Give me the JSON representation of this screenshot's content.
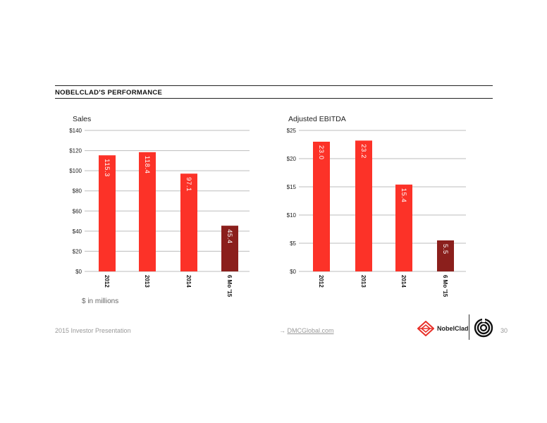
{
  "header": {
    "title": "NOBELCLAD'S PERFORMANCE"
  },
  "note": "$ in millions",
  "footer": {
    "left": "2015 Investor Presentation",
    "arrow": "→",
    "link": "DMCGlobal.com",
    "page": "30",
    "logo_text": "NobelClad"
  },
  "icons": {
    "nobelclad": "nobelclad-logo-icon",
    "dmc": "dmc-swirl-icon"
  },
  "colors": {
    "primary_bar": "#fc3228",
    "highlight_bar": "#8b1f1c",
    "grid": "#bdbdbd"
  },
  "chart_data": [
    {
      "type": "bar",
      "title": "Sales",
      "categories": [
        "2012",
        "2013",
        "2014",
        "6 Mo '15"
      ],
      "values": [
        115.3,
        118.4,
        97.1,
        45.4
      ],
      "value_labels": [
        "115.3",
        "118.4",
        "97.1",
        "45.4"
      ],
      "ylim": [
        0,
        140
      ],
      "yticks": [
        0,
        20,
        40,
        60,
        80,
        100,
        120,
        140
      ],
      "ytick_labels": [
        "$0",
        "$20",
        "$40",
        "$60",
        "$80",
        "$100",
        "$120",
        "$140"
      ],
      "grid": true,
      "highlight_index": 3
    },
    {
      "type": "bar",
      "title": "Adjusted EBITDA",
      "categories": [
        "2012",
        "2013",
        "2014",
        "6 Mo '15"
      ],
      "values": [
        23.0,
        23.2,
        15.4,
        5.5
      ],
      "value_labels": [
        "23.0",
        "23.2",
        "15.4",
        "5.5"
      ],
      "ylim": [
        0,
        25
      ],
      "yticks": [
        0,
        5,
        10,
        15,
        20,
        25
      ],
      "ytick_labels": [
        "$0",
        "$5",
        "$10",
        "$15",
        "$20",
        "$25"
      ],
      "grid": true,
      "highlight_index": 3
    }
  ]
}
